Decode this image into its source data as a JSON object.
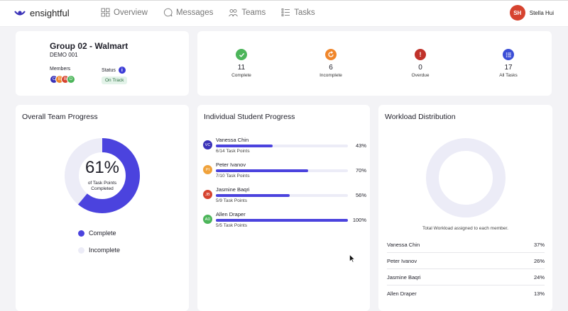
{
  "app": {
    "name": "ensightful"
  },
  "nav": {
    "overview": "Overview",
    "messages": "Messages",
    "teams": "Teams",
    "tasks": "Tasks"
  },
  "user": {
    "initials": "SH",
    "name": "Stella Hui"
  },
  "group": {
    "title": "Group 02 - Walmart",
    "subtitle": "DEMO 001",
    "members_label": "Members",
    "members": [
      {
        "initial": "C",
        "color": "#3b33b8"
      },
      {
        "initial": "E",
        "color": "#f0862b"
      },
      {
        "initial": "B",
        "color": "#d6432f"
      },
      {
        "initial": "D",
        "color": "#4cb55a"
      }
    ],
    "status_label": "Status",
    "status": "On Track"
  },
  "stats": [
    {
      "count": "11",
      "label": "Complete",
      "icon": "check-icon",
      "color": "#4cb55a"
    },
    {
      "count": "6",
      "label": "Incomplete",
      "icon": "refresh-icon",
      "color": "#f0862b"
    },
    {
      "count": "0",
      "label": "Overdue",
      "icon": "exclamation-icon",
      "color": "#c0322a"
    },
    {
      "count": "17",
      "label": "All Tasks",
      "icon": "list-icon",
      "color": "#3b4ed6"
    }
  ],
  "team_progress": {
    "title": "Overall Team Progress",
    "percent": 61,
    "percent_label": "61%",
    "sub_line1": "of Task Points",
    "sub_line2": "Completed",
    "legend": {
      "complete": "Complete",
      "incomplete": "Incomplete"
    },
    "colors": {
      "complete": "#4b43de",
      "incomplete": "#ececf7"
    }
  },
  "student_progress": {
    "title": "Individual Student Progress",
    "students": [
      {
        "initials": "VC",
        "name": "Vanessa Chin",
        "points": "6/14 Task Points",
        "percent": 43,
        "percent_label": "43%",
        "color": "#3b33b8"
      },
      {
        "initials": "PI",
        "name": "Peter Ivanov",
        "points": "7/10 Task Points",
        "percent": 70,
        "percent_label": "70%",
        "color": "#f0a23b"
      },
      {
        "initials": "JB",
        "name": "Jasmine Baqri",
        "points": "5/9 Task Points",
        "percent": 56,
        "percent_label": "56%",
        "color": "#d6432f"
      },
      {
        "initials": "AD",
        "name": "Allen Draper",
        "points": "5/5 Task Points",
        "percent": 100,
        "percent_label": "100%",
        "color": "#4cb55a"
      }
    ]
  },
  "workload": {
    "title": "Workload Distribution",
    "caption": "Total Workload assigned to each member.",
    "rows": [
      {
        "name": "Vanessa Chin",
        "percent": "37%"
      },
      {
        "name": "Peter Ivanov",
        "percent": "26%"
      },
      {
        "name": "Jasmine Baqri",
        "percent": "24%"
      },
      {
        "name": "Allen Draper",
        "percent": "13%"
      }
    ]
  }
}
